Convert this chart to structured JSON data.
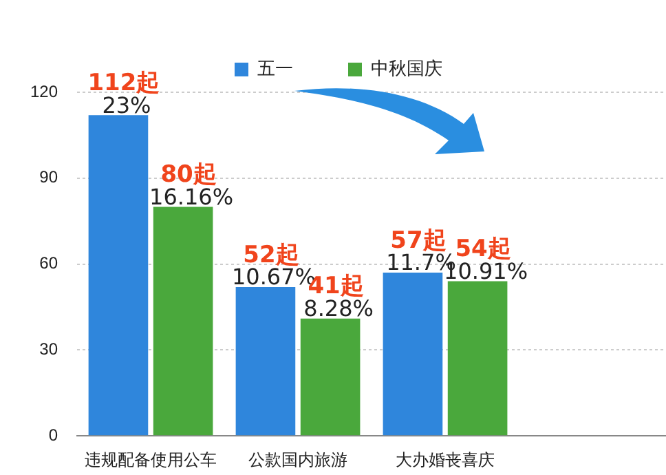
{
  "chart_data": {
    "type": "bar",
    "categories": [
      "违规配备使用公车",
      "公款国内旅游",
      "大办婚丧喜庆",
      null
    ],
    "series": [
      {
        "name": "五一",
        "color": "#2f86dc",
        "values": [
          112,
          52,
          57,
          null
        ],
        "value_labels": [
          "112起",
          "52起",
          "57起",
          null
        ]
      },
      {
        "name": "中秋国庆",
        "color": "#4aa83c",
        "values": [
          80,
          41,
          54,
          null
        ],
        "value_labels": [
          "80起",
          "41起",
          "54起",
          null
        ]
      }
    ],
    "ylim": [
      0,
      120
    ],
    "yticks": [
      0,
      30,
      60,
      90,
      120
    ],
    "grid": "y",
    "legend": "top",
    "annotations": [
      {
        "text": "23%",
        "x": "违规配备使用公车",
        "y": 112
      },
      {
        "text": "16.16%",
        "x": "违规配备使用公车",
        "y": 80
      },
      {
        "text": "10.67%",
        "x": "公款国内旅游",
        "y": 52
      },
      {
        "text": "8.28%",
        "x": "公款国内旅游",
        "y": 41
      },
      {
        "text": "11.7%",
        "x": "大办婚丧喜庆",
        "y": 57
      },
      {
        "text": "10.91%",
        "x": "大办婚丧喜庆",
        "y": 54
      }
    ]
  }
}
